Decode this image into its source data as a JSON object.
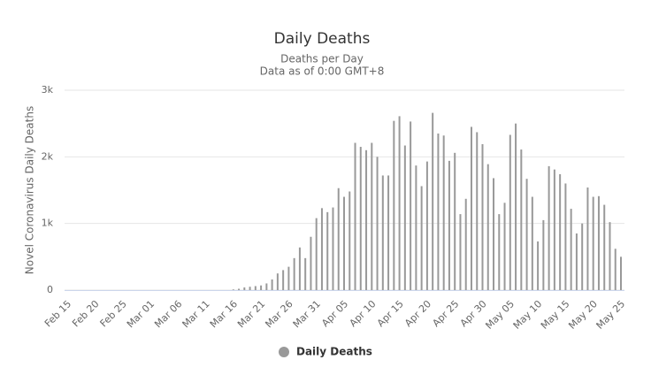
{
  "chart_data": {
    "type": "bar",
    "title": "Daily Deaths",
    "subtitle": [
      "Deaths per Day",
      "Data as of 0:00 GMT+8"
    ],
    "y_axis_label": "Novel Coronavirus Daily Deaths",
    "categories": [
      "Feb 15",
      null,
      null,
      null,
      null,
      "Feb 20",
      null,
      null,
      null,
      null,
      "Feb 25",
      null,
      null,
      null,
      null,
      "Mar 01",
      null,
      null,
      null,
      null,
      "Mar 06",
      null,
      null,
      null,
      null,
      "Mar 11",
      null,
      null,
      null,
      null,
      "Mar 16",
      null,
      null,
      null,
      null,
      "Mar 21",
      null,
      null,
      null,
      null,
      "Mar 26",
      null,
      null,
      null,
      null,
      "Mar 31",
      null,
      null,
      null,
      null,
      "Apr 05",
      null,
      null,
      null,
      null,
      "Apr 10",
      null,
      null,
      null,
      null,
      "Apr 15",
      null,
      null,
      null,
      null,
      "Apr 20",
      null,
      null,
      null,
      null,
      "Apr 25",
      null,
      null,
      null,
      null,
      "Apr 30",
      null,
      null,
      null,
      null,
      "May 05",
      null,
      null,
      null,
      null,
      "May 10",
      null,
      null,
      null,
      null,
      "May 15",
      null,
      null,
      null,
      null,
      "May 20",
      null,
      null,
      null,
      null,
      "May 25"
    ],
    "series": [
      {
        "name": "Daily Deaths",
        "color": "#999999",
        "values": [
          0,
          0,
          0,
          0,
          0,
          0,
          0,
          0,
          0,
          0,
          0,
          0,
          0,
          0,
          0,
          0,
          0,
          0,
          0,
          0,
          0,
          0,
          0,
          0,
          0,
          0,
          0,
          0,
          0,
          0,
          10,
          20,
          40,
          50,
          60,
          70,
          100,
          160,
          250,
          300,
          350,
          480,
          640,
          480,
          800,
          1080,
          1230,
          1170,
          1240,
          1530,
          1400,
          1480,
          2210,
          2150,
          2100,
          2210,
          2000,
          1720,
          1720,
          2540,
          2610,
          2170,
          2530,
          1870,
          1560,
          1930,
          2660,
          2350,
          2320,
          1940,
          2060,
          1140,
          1370,
          2450,
          2370,
          2190,
          1890,
          1680,
          1140,
          1310,
          2330,
          2500,
          2110,
          1670,
          1400,
          730,
          1050,
          1860,
          1810,
          1740,
          1600,
          1220,
          850,
          1000,
          1540,
          1400,
          1410,
          1280,
          1020,
          620,
          500
        ]
      }
    ],
    "ylim": [
      0,
      3000
    ],
    "yticks": [
      0,
      {
        "value": 1000,
        "label": "1k"
      },
      {
        "value": 2000,
        "label": "2k"
      },
      {
        "value": 3000,
        "label": "3k"
      }
    ],
    "grid": true,
    "legend": "bottom"
  }
}
